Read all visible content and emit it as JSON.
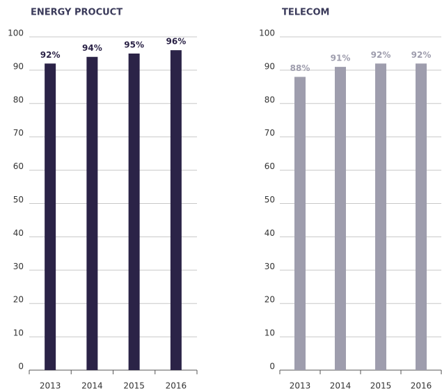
{
  "chart_data": [
    {
      "type": "bar",
      "title": "ENERGY PROCUCT",
      "categories": [
        "2013",
        "2014",
        "2015",
        "2016"
      ],
      "values": [
        92,
        94,
        95,
        96
      ],
      "value_labels": [
        "92%",
        "94%",
        "95%",
        "96%"
      ],
      "color": "#2b2347",
      "ylim": [
        0,
        100
      ],
      "yticks": [
        0,
        10,
        20,
        30,
        40,
        50,
        60,
        70,
        80,
        90,
        100
      ],
      "grid": true
    },
    {
      "type": "bar",
      "title": "TELECOM",
      "categories": [
        "2013",
        "2014",
        "2015",
        "2016"
      ],
      "values": [
        88,
        91,
        92,
        92
      ],
      "value_labels": [
        "88%",
        "91%",
        "92%",
        "92%"
      ],
      "color": "#9e9dad",
      "ylim": [
        0,
        100
      ],
      "yticks": [
        0,
        10,
        20,
        30,
        40,
        50,
        60,
        70,
        80,
        90,
        100
      ],
      "grid": true
    }
  ]
}
